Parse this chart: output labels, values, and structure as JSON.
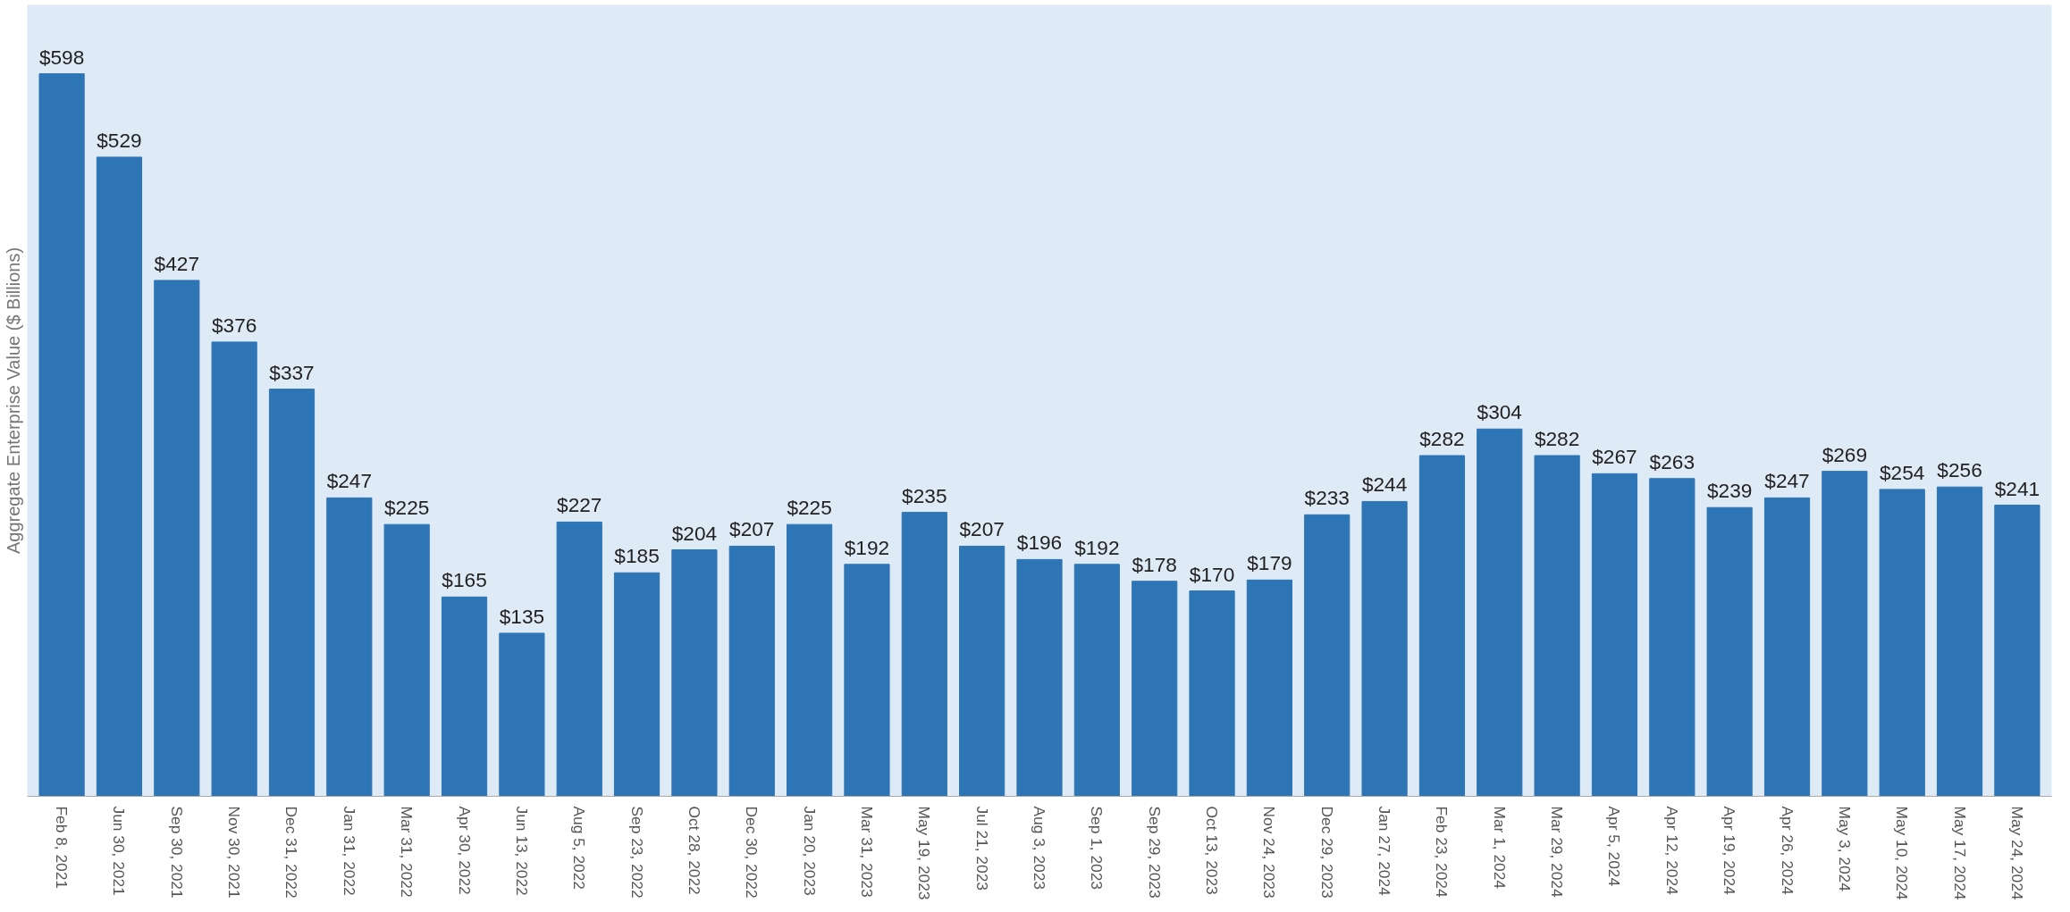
{
  "chart_data": {
    "type": "bar",
    "ylabel": "Aggregate Enterprise Value ($ Billions)",
    "categories": [
      "Feb 8, 2021",
      "Jun 30, 2021",
      "Sep 30, 2021",
      "Nov 30, 2021",
      "Dec 31, 2022",
      "Jan 31, 2022",
      "Mar 31, 2022",
      "Apr 30, 2022",
      "Jun 13, 2022",
      "Aug 5, 2022",
      "Sep 23, 2022",
      "Oct 28, 2022",
      "Dec 30, 2022",
      "Jan 20, 2023",
      "Mar 31, 2023",
      "May 19, 2023",
      "Jul 21, 2023",
      "Aug 3, 2023",
      "Sep 1, 2023",
      "Sep 29, 2023",
      "Oct 13, 2023",
      "Nov 24, 2023",
      "Dec 29, 2023",
      "Jan 27, 2024",
      "Feb 23, 2024",
      "Mar 1, 2024",
      "Mar 29, 2024",
      "Apr 5, 2024",
      "Apr 12, 2024",
      "Apr 19, 2024",
      "Apr 26, 2024",
      "May 3, 2024",
      "May 10, 2024",
      "May 17, 2024",
      "May 24, 2024"
    ],
    "values": [
      598,
      529,
      427,
      376,
      337,
      247,
      225,
      165,
      135,
      227,
      185,
      204,
      207,
      225,
      192,
      235,
      207,
      196,
      192,
      178,
      170,
      179,
      233,
      244,
      282,
      304,
      282,
      267,
      263,
      239,
      247,
      269,
      254,
      256,
      241
    ],
    "value_labels": [
      "$598",
      "$529",
      "$427",
      "$376",
      "$337",
      "$247",
      "$225",
      "$165",
      "$135",
      "$227",
      "$185",
      "$204",
      "$207",
      "$225",
      "$192",
      "$235",
      "$207",
      "$196",
      "$192",
      "$178",
      "$170",
      "$179",
      "$233",
      "$244",
      "$282",
      "$304",
      "$282",
      "$267",
      "$263",
      "$239",
      "$247",
      "$269",
      "$254",
      "$256",
      "$241"
    ],
    "color": "#2e75b6",
    "ylim": [
      0,
      655
    ],
    "tick_labels": "x",
    "grid": false
  }
}
